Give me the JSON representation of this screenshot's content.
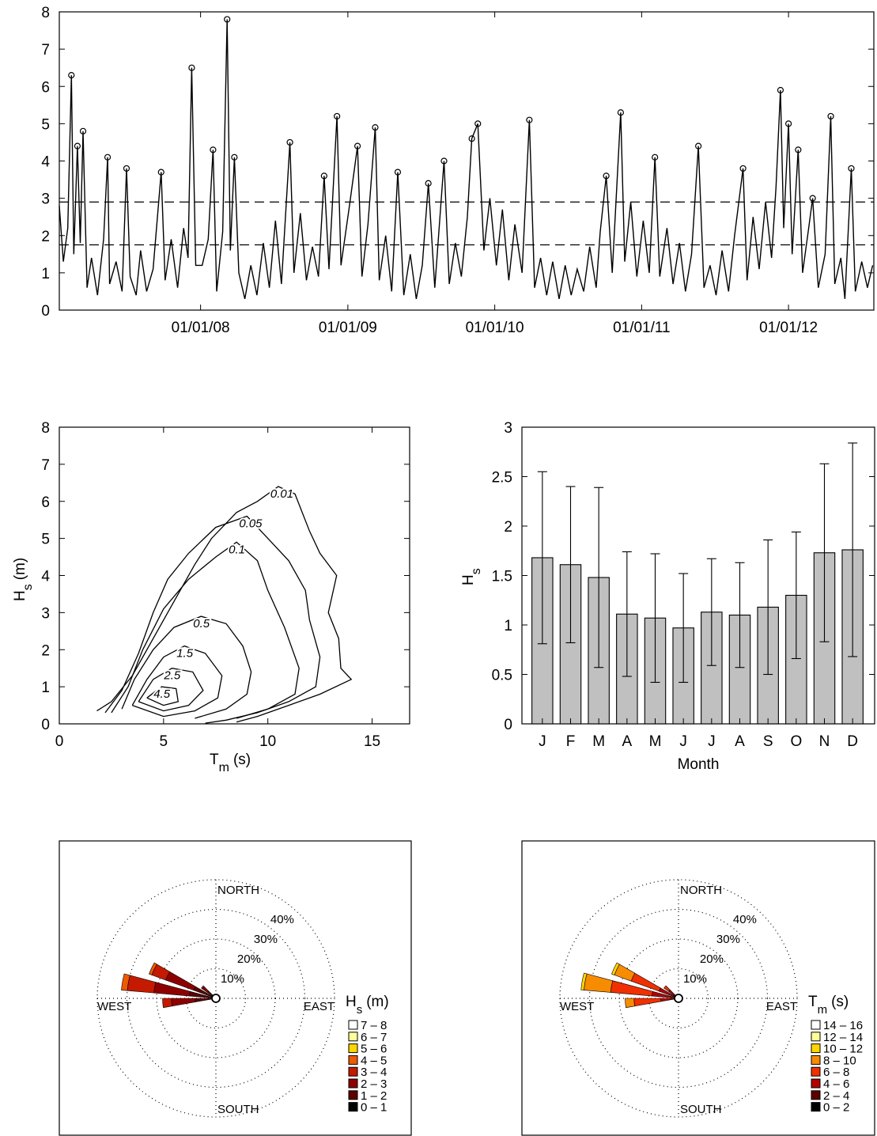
{
  "chart_data": [
    {
      "type": "line",
      "xlim": [
        "15/01/07",
        "31/07/12"
      ],
      "xticks": [
        "01/01/08",
        "01/01/09",
        "01/01/10",
        "01/01/11",
        "01/01/12"
      ],
      "ylim": [
        0,
        8
      ],
      "yticks": [
        0,
        1,
        2,
        3,
        4,
        5,
        6,
        7,
        8
      ],
      "x": [
        "15/01/07",
        "25/01/07",
        "05/02/07",
        "14/02/07",
        "20/02/07",
        "01/03/07",
        "08/03/07",
        "15/03/07",
        "25/03/07",
        "05/04/07",
        "20/04/07",
        "05/05/07",
        "15/05/07",
        "20/05/07",
        "05/06/07",
        "20/06/07",
        "01/07/07",
        "10/07/07",
        "25/07/07",
        "05/08/07",
        "20/08/07",
        "05/09/07",
        "25/09/07",
        "05/10/07",
        "20/10/07",
        "05/11/07",
        "20/11/07",
        "01/12/07",
        "10/12/07",
        "20/12/07",
        "05/01/08",
        "20/01/08",
        "01/02/08",
        "10/02/08",
        "25/02/08",
        "07/03/08",
        "15/03/08",
        "25/03/08",
        "05/04/08",
        "20/04/08",
        "05/05/08",
        "20/05/08",
        "05/06/08",
        "20/06/08",
        "05/07/08",
        "20/07/08",
        "10/08/08",
        "20/08/08",
        "05/09/08",
        "20/09/08",
        "05/10/08",
        "20/10/08",
        "03/11/08",
        "15/11/08",
        "05/12/08",
        "15/12/08",
        "05/01/09",
        "25/01/09",
        "05/02/09",
        "20/02/09",
        "10/03/09",
        "20/03/09",
        "05/04/09",
        "20/04/09",
        "05/05/09",
        "20/05/09",
        "05/06/09",
        "20/06/09",
        "05/07/09",
        "20/07/09",
        "05/08/09",
        "28/08/09",
        "10/09/09",
        "25/09/09",
        "10/10/09",
        "25/10/09",
        "05/11/09",
        "20/11/09",
        "05/12/09",
        "20/12/09",
        "05/01/10",
        "20/01/10",
        "05/02/10",
        "20/02/10",
        "10/03/10",
        "28/03/10",
        "10/04/10",
        "25/04/10",
        "10/05/10",
        "25/05/10",
        "10/06/10",
        "25/06/10",
        "10/07/10",
        "25/07/10",
        "10/08/10",
        "25/08/10",
        "10/09/10",
        "20/09/10",
        "05/10/10",
        "20/10/10",
        "10/11/10",
        "20/11/10",
        "05/12/10",
        "20/12/10",
        "05/01/11",
        "20/01/11",
        "03/02/11",
        "15/02/11",
        "05/03/11",
        "20/03/11",
        "05/04/11",
        "20/04/11",
        "05/05/11",
        "22/05/11",
        "05/06/11",
        "20/06/11",
        "05/07/11",
        "20/07/11",
        "05/08/11",
        "20/08/11",
        "10/09/11",
        "20/09/11",
        "05/10/11",
        "20/10/11",
        "05/11/11",
        "20/11/11",
        "01/12/11",
        "12/12/11",
        "20/12/11",
        "01/01/12",
        "10/01/12",
        "25/01/12",
        "05/02/12",
        "20/02/12",
        "01/03/12",
        "15/03/12",
        "01/04/12",
        "15/04/12",
        "25/04/12",
        "10/05/12",
        "20/05/12",
        "05/06/12",
        "15/06/12",
        "01/07/12",
        "15/07/12",
        "28/07/12"
      ],
      "series": [
        {
          "color": "#000000",
          "values": [
            2.8,
            1.3,
            2.2,
            6.3,
            1.5,
            4.4,
            1.8,
            4.8,
            0.6,
            1.4,
            0.4,
            1.9,
            4.1,
            0.7,
            1.3,
            0.5,
            3.8,
            0.9,
            0.4,
            1.6,
            0.5,
            1.1,
            3.7,
            0.8,
            1.9,
            0.6,
            2.2,
            1.4,
            6.5,
            1.2,
            1.2,
            1.9,
            4.3,
            0.5,
            2.1,
            7.8,
            1.6,
            4.1,
            1.0,
            0.3,
            1.2,
            0.4,
            1.8,
            0.6,
            2.4,
            0.7,
            4.5,
            1.0,
            2.6,
            0.8,
            1.7,
            0.9,
            3.6,
            1.1,
            5.2,
            1.2,
            2.8,
            4.4,
            0.9,
            2.3,
            4.9,
            0.8,
            2.0,
            0.5,
            3.7,
            0.4,
            1.5,
            0.3,
            1.2,
            3.4,
            0.6,
            4.0,
            0.7,
            1.8,
            0.9,
            2.5,
            4.6,
            5.0,
            1.6,
            3.0,
            1.2,
            2.7,
            0.8,
            2.3,
            1.0,
            5.1,
            0.6,
            1.4,
            0.4,
            1.3,
            0.3,
            1.2,
            0.4,
            1.1,
            0.5,
            1.7,
            0.6,
            2.1,
            3.6,
            1.0,
            5.3,
            1.3,
            2.9,
            0.9,
            2.4,
            1.0,
            4.1,
            0.9,
            2.2,
            0.7,
            1.8,
            0.5,
            1.5,
            4.4,
            0.6,
            1.2,
            0.4,
            1.6,
            0.5,
            2.0,
            3.8,
            0.8,
            2.5,
            1.1,
            2.9,
            1.4,
            3.3,
            5.9,
            2.2,
            5.0,
            1.5,
            4.3,
            1.0,
            2.2,
            3.0,
            0.6,
            1.5,
            5.2,
            0.7,
            1.4,
            0.3,
            3.8,
            0.5,
            1.3,
            0.6,
            1.2
          ]
        }
      ],
      "peaks": {
        "x": [
          "14/02/07",
          "01/03/07",
          "15/03/07",
          "15/05/07",
          "01/07/07",
          "25/09/07",
          "10/12/07",
          "01/02/08",
          "07/03/08",
          "25/03/08",
          "10/08/08",
          "03/11/08",
          "05/12/08",
          "25/01/09",
          "10/03/09",
          "05/05/09",
          "20/07/09",
          "28/08/09",
          "05/11/09",
          "20/11/09",
          "28/03/10",
          "05/10/10",
          "10/11/10",
          "03/02/11",
          "22/05/11",
          "10/09/11",
          "12/12/11",
          "01/01/12",
          "25/01/12",
          "01/03/12",
          "15/04/12",
          "05/06/12"
        ],
        "values": [
          6.3,
          4.4,
          4.8,
          4.1,
          3.8,
          3.7,
          6.5,
          4.3,
          7.8,
          4.1,
          4.5,
          3.6,
          5.2,
          4.4,
          4.9,
          3.7,
          3.4,
          4.0,
          4.6,
          5.0,
          5.1,
          3.6,
          5.3,
          4.1,
          4.4,
          3.8,
          5.9,
          5.0,
          4.3,
          3.0,
          5.2,
          3.8
        ]
      },
      "reference_lines": [
        2.9,
        1.75
      ]
    },
    {
      "type": "contour",
      "xlim": [
        0,
        16.8
      ],
      "xticks": [
        0,
        5,
        10,
        15
      ],
      "ylim": [
        0,
        8
      ],
      "yticks": [
        0,
        1,
        2,
        3,
        4,
        5,
        6,
        7,
        8
      ],
      "xlabel": {
        "base": "T",
        "sub": "m",
        "unit": "(s)"
      },
      "ylabel": {
        "base": "H",
        "sub": "s",
        "unit": "(m)"
      },
      "contours": [
        {
          "level": 0.01,
          "x": [
            1.8,
            2.5,
            3.5,
            4.5,
            5.5,
            6.5,
            7.3,
            8.5,
            9.5,
            10.5,
            11.3,
            12.0,
            12.5,
            13.3,
            12.9,
            13.4,
            13.5,
            14.0,
            12.5,
            11.0,
            9.5,
            8.5
          ],
          "y": [
            0.35,
            0.6,
            1.3,
            2.3,
            3.3,
            4.3,
            5.0,
            5.7,
            6.0,
            6.4,
            6.2,
            5.2,
            4.6,
            4.0,
            3.0,
            2.3,
            1.5,
            1.2,
            0.8,
            0.5,
            0.2,
            0.05
          ]
        },
        {
          "level": 0.05,
          "x": [
            2.2,
            3.0,
            3.8,
            4.5,
            5.2,
            6.2,
            7.5,
            9.0,
            10.0,
            11.0,
            11.8,
            12.0,
            12.5,
            12.3,
            11.0,
            9.5,
            8.0,
            7.0
          ],
          "y": [
            0.3,
            0.9,
            1.9,
            3.0,
            3.9,
            4.6,
            5.3,
            5.6,
            5.0,
            4.4,
            3.6,
            2.8,
            1.8,
            1.0,
            0.6,
            0.3,
            0.1,
            0.02
          ]
        },
        {
          "level": 0.1,
          "x": [
            2.5,
            3.3,
            4.0,
            5.0,
            6.2,
            7.5,
            8.5,
            9.5,
            10.0,
            10.8,
            11.5,
            11.3,
            10.0,
            8.5
          ],
          "y": [
            0.3,
            1.0,
            2.0,
            3.1,
            3.9,
            4.5,
            4.9,
            4.4,
            3.6,
            2.6,
            1.5,
            0.8,
            0.4,
            0.15
          ]
        },
        {
          "level": 0.5,
          "x": [
            3.0,
            3.6,
            4.5,
            5.5,
            6.8,
            8.0,
            8.8,
            9.2,
            9.0,
            8.0,
            6.5
          ],
          "y": [
            0.4,
            1.2,
            2.0,
            2.6,
            2.9,
            2.7,
            2.1,
            1.4,
            0.8,
            0.4,
            0.15
          ]
        },
        {
          "level": 1.5,
          "x": [
            3.5,
            4.2,
            5.0,
            6.0,
            7.0,
            7.8,
            7.6,
            6.5,
            5.0,
            3.5
          ],
          "y": [
            0.5,
            1.2,
            1.8,
            2.1,
            1.9,
            1.3,
            0.7,
            0.35,
            0.2,
            0.5
          ]
        },
        {
          "level": 2.5,
          "x": [
            3.8,
            4.5,
            5.4,
            6.4,
            6.9,
            6.2,
            5.0,
            3.8
          ],
          "y": [
            0.6,
            1.2,
            1.5,
            1.4,
            0.9,
            0.5,
            0.35,
            0.6
          ]
        },
        {
          "level": 4.5,
          "x": [
            4.2,
            4.9,
            5.6,
            5.7,
            5.0,
            4.2
          ],
          "y": [
            0.7,
            1.0,
            0.95,
            0.6,
            0.5,
            0.7
          ]
        }
      ]
    },
    {
      "type": "bar",
      "categories": [
        "J",
        "F",
        "M",
        "A",
        "M",
        "J",
        "J",
        "A",
        "S",
        "O",
        "N",
        "D"
      ],
      "values": [
        1.68,
        1.61,
        1.48,
        1.11,
        1.07,
        0.97,
        1.13,
        1.1,
        1.18,
        1.3,
        1.73,
        1.76
      ],
      "errors": [
        0.87,
        0.79,
        0.91,
        0.63,
        0.65,
        0.55,
        0.54,
        0.53,
        0.68,
        0.64,
        0.9,
        1.08
      ],
      "color": "#c0c0c0",
      "ylim": [
        0,
        3
      ],
      "yticks": [
        0,
        0.5,
        1,
        1.5,
        2,
        2.5,
        3
      ],
      "ylabel": {
        "base": "H",
        "sub": "s"
      },
      "xlabel": "Month"
    },
    {
      "type": "rose",
      "directions": [
        265,
        280,
        295,
        310
      ],
      "rlim": [
        0,
        40
      ],
      "rings": [
        {
          "value": 10,
          "label": "10%"
        },
        {
          "value": 20,
          "label": "20%"
        },
        {
          "value": 30,
          "label": "30%"
        },
        {
          "value": 40,
          "label": "40%"
        }
      ],
      "compass": {
        "north": "NORTH",
        "east": "EAST",
        "south": "SOUTH",
        "west": "WEST"
      },
      "legend_title": {
        "base": "H",
        "sub": "s",
        "unit": "(m)"
      },
      "series": [
        {
          "name": "0 – 1",
          "color": "#000000",
          "values": [
            1,
            1,
            1,
            0.5
          ]
        },
        {
          "name": "1 – 2",
          "color": "#5c0000",
          "values": [
            6,
            8,
            7,
            3
          ]
        },
        {
          "name": "2 – 3",
          "color": "#8e0000",
          "values": [
            8,
            12,
            10,
            2
          ]
        },
        {
          "name": "3 – 4",
          "color": "#c41a00",
          "values": [
            3,
            9,
            5,
            0.5
          ]
        },
        {
          "name": "4 – 5",
          "color": "#ee5a00",
          "values": [
            0,
            2,
            1,
            0
          ]
        },
        {
          "name": "5 – 6",
          "color": "#ffd700",
          "values": [
            0,
            0,
            0,
            0
          ]
        },
        {
          "name": "6 – 7",
          "color": "#ffff99",
          "values": [
            0,
            0,
            0,
            0
          ]
        },
        {
          "name": "7 – 8",
          "color": "#ffffff",
          "values": [
            0,
            0,
            0,
            0
          ]
        }
      ]
    },
    {
      "type": "rose",
      "directions": [
        265,
        280,
        295,
        310
      ],
      "rlim": [
        0,
        40
      ],
      "rings": [
        {
          "value": 10,
          "label": "10%"
        },
        {
          "value": 20,
          "label": "20%"
        },
        {
          "value": 30,
          "label": "30%"
        },
        {
          "value": 40,
          "label": "40%"
        }
      ],
      "compass": {
        "north": "NORTH",
        "east": "EAST",
        "south": "SOUTH",
        "west": "WEST"
      },
      "legend_title": {
        "base": "T",
        "sub": "m",
        "unit": "(s)"
      },
      "series": [
        {
          "name": "0 – 2",
          "color": "#000000",
          "values": [
            0,
            0,
            0,
            0
          ]
        },
        {
          "name": "2 – 4",
          "color": "#5c0000",
          "values": [
            1,
            1,
            1,
            1
          ]
        },
        {
          "name": "4 – 6",
          "color": "#b00000",
          "values": [
            5,
            8,
            6,
            3
          ]
        },
        {
          "name": "6 – 8",
          "color": "#f03000",
          "values": [
            9,
            14,
            10,
            2
          ]
        },
        {
          "name": "8 – 10",
          "color": "#f78c00",
          "values": [
            3,
            9,
            6,
            0
          ]
        },
        {
          "name": "10 – 12",
          "color": "#ffd700",
          "values": [
            0,
            1,
            1,
            0
          ]
        },
        {
          "name": "12 – 14",
          "color": "#ffff99",
          "values": [
            0,
            0,
            0,
            0
          ]
        },
        {
          "name": "14 – 16",
          "color": "#ffffff",
          "values": [
            0,
            0,
            0,
            0
          ]
        }
      ]
    }
  ]
}
